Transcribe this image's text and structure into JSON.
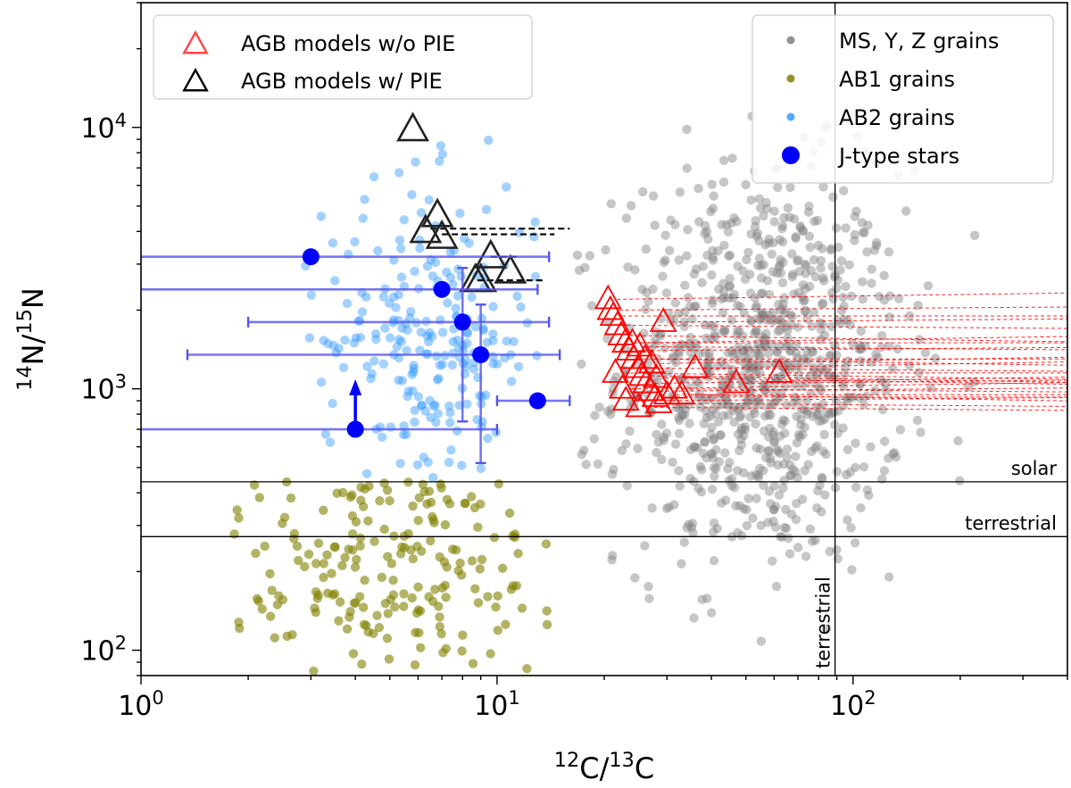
{
  "chart_data": {
    "type": "scatter",
    "title": "",
    "x_scale": "log",
    "y_scale": "log",
    "xlim": [
      1,
      400
    ],
    "ylim": [
      80,
      30000
    ],
    "xlabel": {
      "iso1": "12",
      "el1": "C/",
      "iso2": "13",
      "el2": "C"
    },
    "ylabel": {
      "iso1": "14",
      "el1": "N/",
      "iso2": "15",
      "el2": "N"
    },
    "x_ticks": [
      {
        "value": 1,
        "base": "10",
        "exp": "0"
      },
      {
        "value": 10,
        "base": "10",
        "exp": "1"
      },
      {
        "value": 100,
        "base": "10",
        "exp": "2"
      }
    ],
    "y_ticks": [
      {
        "value": 100,
        "base": "10",
        "exp": "2"
      },
      {
        "value": 1000,
        "base": "10",
        "exp": "3"
      },
      {
        "value": 10000,
        "base": "10",
        "exp": "4"
      }
    ],
    "reference_lines": [
      {
        "orientation": "horizontal",
        "value": 441,
        "label": "solar",
        "color": "#000000"
      },
      {
        "orientation": "horizontal",
        "value": 272,
        "label": "terrestrial",
        "color": "#000000"
      },
      {
        "orientation": "vertical",
        "value": 89,
        "label": "terrestrial",
        "color": "#000000"
      }
    ],
    "legend_left": {
      "position": "top-left",
      "entries": [
        {
          "label": "AGB models w/o PIE",
          "marker": "triangle",
          "color": "#ff3333"
        },
        {
          "label": "AGB models w/ PIE",
          "marker": "triangle",
          "color": "#000000"
        }
      ]
    },
    "legend_right": {
      "position": "top-right",
      "entries": [
        {
          "label": "MS, Y, Z grains",
          "marker": "dot",
          "color": "#808080"
        },
        {
          "label": "AB1 grains",
          "marker": "dot",
          "color": "#808000"
        },
        {
          "label": "AB2 grains",
          "marker": "dot",
          "color": "#3399ff"
        },
        {
          "label": "J-type stars",
          "marker": "circle",
          "color": "#0000ff"
        }
      ]
    },
    "series": [
      {
        "name": "MS, Y, Z grains",
        "color": "#808080",
        "opacity": 0.45,
        "distribution": {
          "count": 900,
          "x_center": 55,
          "x_spread_dex": 0.2,
          "x_range": [
            14,
            350
          ],
          "y_center": 1200,
          "y_spread_dex": 0.38,
          "y_range": [
            100,
            20000
          ]
        }
      },
      {
        "name": "AB1 grains",
        "color": "#808000",
        "opacity": 0.6,
        "distribution": {
          "count": 200,
          "x_center": 4.5,
          "x_spread_dex": 0.3,
          "x_range": [
            1.8,
            20
          ],
          "y_center": 220,
          "y_spread_dex": 0.22,
          "y_range": [
            78,
            440
          ]
        }
      },
      {
        "name": "AB2 grains",
        "color": "#3399ff",
        "opacity": 0.45,
        "distribution": {
          "count": 230,
          "x_center": 6.5,
          "x_spread_dex": 0.15,
          "x_range": [
            2.8,
            13
          ],
          "y_center": 1500,
          "y_spread_dex": 0.3,
          "y_range": [
            440,
            12500
          ]
        }
      },
      {
        "name": "J-type stars",
        "color": "#0000ff",
        "points": [
          {
            "x": 3.0,
            "y": 3200,
            "xerr": [
              1.0,
              14.0
            ]
          },
          {
            "x": 7.0,
            "y": 2400,
            "xerr": [
              1.0,
              13.0
            ]
          },
          {
            "x": 8.0,
            "y": 1800,
            "xerr": [
              2.0,
              14.0
            ],
            "yerr": [
              750,
              2900
            ]
          },
          {
            "x": 9.0,
            "y": 1350,
            "xerr": [
              1.35,
              15.0
            ],
            "yerr": [
              520,
              2100
            ]
          },
          {
            "x": 13.0,
            "y": 900,
            "xerr": [
              10.0,
              16.0
            ]
          },
          {
            "x": 4.0,
            "y": 700,
            "xerr": [
              1.0,
              10.0
            ],
            "lower_limit": true
          }
        ]
      },
      {
        "name": "AGB models w/ PIE",
        "color": "#000000",
        "points": [
          {
            "x": 5.8,
            "y": 9800
          },
          {
            "x": 6.8,
            "y": 4600
          },
          {
            "x": 7.0,
            "y": 3800
          },
          {
            "x": 6.3,
            "y": 4000
          },
          {
            "x": 9.6,
            "y": 3200
          },
          {
            "x": 10.9,
            "y": 2800
          },
          {
            "x": 8.7,
            "y": 2600
          },
          {
            "x": 9.0,
            "y": 2600
          }
        ],
        "connectors": [
          {
            "x1": 6.5,
            "x2": 16.0,
            "y": 4100
          },
          {
            "x1": 7.0,
            "x2": 14.5,
            "y": 3900
          },
          {
            "x1": 9.6,
            "x2": 11.5,
            "y": 3200
          },
          {
            "x1": 8.8,
            "x2": 13.5,
            "y": 2600
          }
        ]
      },
      {
        "name": "AGB models w/o PIE",
        "color": "#ff0000",
        "points": [
          {
            "x": 20.5,
            "y": 2200
          },
          {
            "x": 20.8,
            "y": 2000
          },
          {
            "x": 21.2,
            "y": 1900
          },
          {
            "x": 21.8,
            "y": 1750
          },
          {
            "x": 22.3,
            "y": 1600
          },
          {
            "x": 22.9,
            "y": 1500
          },
          {
            "x": 23.5,
            "y": 1400
          },
          {
            "x": 24.2,
            "y": 1300
          },
          {
            "x": 24.9,
            "y": 1200
          },
          {
            "x": 25.5,
            "y": 1120
          },
          {
            "x": 26.2,
            "y": 1050
          },
          {
            "x": 27.0,
            "y": 980
          },
          {
            "x": 27.8,
            "y": 930
          },
          {
            "x": 28.5,
            "y": 880
          },
          {
            "x": 21.5,
            "y": 1150
          },
          {
            "x": 22.5,
            "y": 1000
          },
          {
            "x": 23.0,
            "y": 900
          },
          {
            "x": 24.0,
            "y": 1500
          },
          {
            "x": 25.2,
            "y": 1450
          },
          {
            "x": 26.0,
            "y": 1300
          },
          {
            "x": 27.2,
            "y": 1250
          },
          {
            "x": 29.3,
            "y": 1800
          },
          {
            "x": 30.0,
            "y": 950
          },
          {
            "x": 31.5,
            "y": 1000
          },
          {
            "x": 33.0,
            "y": 950
          },
          {
            "x": 36.0,
            "y": 1200
          },
          {
            "x": 47.0,
            "y": 1050
          },
          {
            "x": 62.0,
            "y": 1150
          },
          {
            "x": 25.0,
            "y": 850
          },
          {
            "x": 28.0,
            "y": 1100
          }
        ],
        "tail_end_x": 400
      }
    ]
  }
}
